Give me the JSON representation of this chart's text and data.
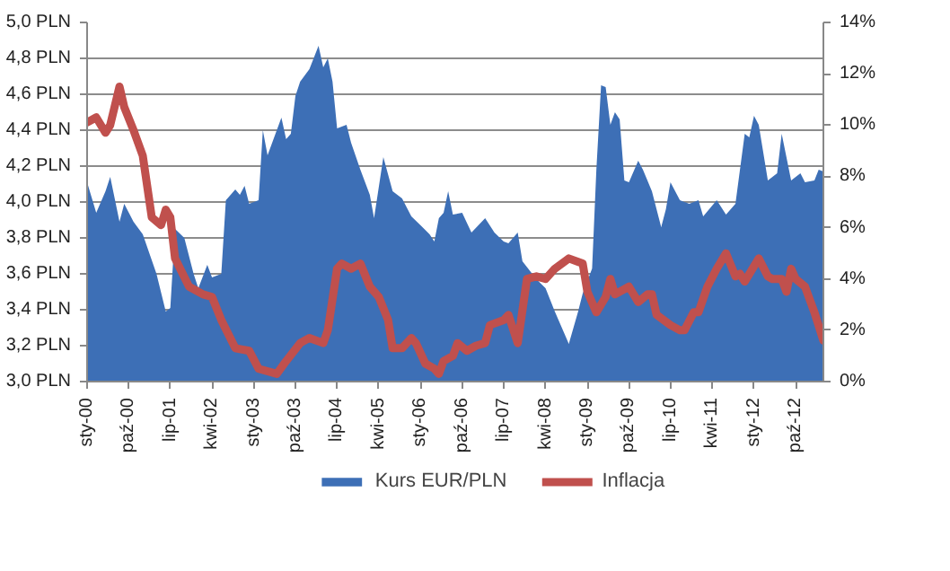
{
  "chart_data": {
    "type": "area",
    "xlim": [
      "2000-01",
      "2013-04"
    ],
    "xticks": [
      {
        "value": "2000-01",
        "label": "sty-00"
      },
      {
        "value": "2000-10",
        "label": "paź-00"
      },
      {
        "value": "2001-07",
        "label": "lip-01"
      },
      {
        "value": "2002-04",
        "label": "kwi-02"
      },
      {
        "value": "2003-01",
        "label": "sty-03"
      },
      {
        "value": "2003-10",
        "label": "paź-03"
      },
      {
        "value": "2004-07",
        "label": "lip-04"
      },
      {
        "value": "2005-04",
        "label": "kwi-05"
      },
      {
        "value": "2006-01",
        "label": "sty-06"
      },
      {
        "value": "2006-10",
        "label": "paź-06"
      },
      {
        "value": "2007-07",
        "label": "lip-07"
      },
      {
        "value": "2008-04",
        "label": "kwi-08"
      },
      {
        "value": "2009-01",
        "label": "sty-09"
      },
      {
        "value": "2009-10",
        "label": "paź-09"
      },
      {
        "value": "2010-07",
        "label": "lip-10"
      },
      {
        "value": "2011-04",
        "label": "kwi-11"
      },
      {
        "value": "2012-01",
        "label": "sty-12"
      },
      {
        "value": "2012-10",
        "label": "paź-12"
      }
    ],
    "ylim": [
      3.0,
      5.0
    ],
    "yticks": [
      {
        "value": 3.0,
        "label": "3,0 PLN"
      },
      {
        "value": 3.2,
        "label": "3,2 PLN"
      },
      {
        "value": 3.4,
        "label": "3,4 PLN"
      },
      {
        "value": 3.6,
        "label": "3,6 PLN"
      },
      {
        "value": 3.8,
        "label": "3,8 PLN"
      },
      {
        "value": 4.0,
        "label": "4,0 PLN"
      },
      {
        "value": 4.2,
        "label": "4,2 PLN"
      },
      {
        "value": 4.4,
        "label": "4,4 PLN"
      },
      {
        "value": 4.6,
        "label": "4,6 PLN"
      },
      {
        "value": 4.8,
        "label": "4,8 PLN"
      },
      {
        "value": 5.0,
        "label": "5,0 PLN"
      }
    ],
    "y2lim": [
      0,
      14
    ],
    "y2ticks": [
      {
        "value": 0,
        "label": "0%"
      },
      {
        "value": 2,
        "label": "2%"
      },
      {
        "value": 4,
        "label": "4%"
      },
      {
        "value": 6,
        "label": "6%"
      },
      {
        "value": 8,
        "label": "8%"
      },
      {
        "value": 10,
        "label": "10%"
      },
      {
        "value": 12,
        "label": "12%"
      },
      {
        "value": 14,
        "label": "14%"
      }
    ],
    "grid": "y",
    "legend": "bottom",
    "series": [
      {
        "name": "Kurs EUR/PLN",
        "color": "#3d6fb6",
        "x": [
          "2000-01",
          "2000-03",
          "2000-05",
          "2000-06",
          "2000-08",
          "2000-09",
          "2000-11",
          "2001-01",
          "2001-04",
          "2001-06",
          "2001-07",
          "2001-08",
          "2001-10",
          "2001-12",
          "2002-01",
          "2002-03",
          "2002-04",
          "2002-06",
          "2002-07",
          "2002-09",
          "2002-10",
          "2002-11",
          "2002-12",
          "2003-02",
          "2003-03",
          "2003-04",
          "2003-07",
          "2003-08",
          "2003-09",
          "2003-10",
          "2003-11",
          "2004-01",
          "2004-03",
          "2004-04",
          "2004-05",
          "2004-06",
          "2004-07",
          "2004-09",
          "2004-10",
          "2004-12",
          "2005-02",
          "2005-03",
          "2005-05",
          "2005-07",
          "2005-09",
          "2005-11",
          "2006-01",
          "2006-03",
          "2006-04",
          "2006-05",
          "2006-06",
          "2006-07",
          "2006-08",
          "2006-10",
          "2006-12",
          "2007-03",
          "2007-05",
          "2007-07",
          "2007-08",
          "2007-10",
          "2007-11",
          "2008-02",
          "2008-04",
          "2008-06",
          "2008-09",
          "2008-11",
          "2008-12",
          "2009-02",
          "2009-03",
          "2009-04",
          "2009-05",
          "2009-06",
          "2009-07",
          "2009-08",
          "2009-09",
          "2009-10",
          "2009-12",
          "2010-01",
          "2010-03",
          "2010-05",
          "2010-06",
          "2010-07",
          "2010-09",
          "2010-11",
          "2011-01",
          "2011-02",
          "2011-05",
          "2011-07",
          "2011-09",
          "2011-11",
          "2011-12",
          "2012-01",
          "2012-02",
          "2012-04",
          "2012-06",
          "2012-07",
          "2012-09",
          "2012-11",
          "2012-12",
          "2013-02",
          "2013-03",
          "2013-04"
        ],
        "values": [
          4.11,
          3.94,
          4.06,
          4.14,
          3.89,
          3.99,
          3.89,
          3.82,
          3.6,
          3.39,
          3.41,
          3.85,
          3.8,
          3.6,
          3.52,
          3.65,
          3.58,
          3.6,
          4.01,
          4.07,
          4.04,
          4.09,
          3.99,
          4.01,
          4.4,
          4.26,
          4.47,
          4.35,
          4.38,
          4.59,
          4.67,
          4.74,
          4.87,
          4.75,
          4.8,
          4.67,
          4.41,
          4.43,
          4.33,
          4.18,
          4.04,
          3.91,
          4.25,
          4.06,
          4.02,
          3.92,
          3.87,
          3.82,
          3.78,
          3.91,
          3.94,
          4.06,
          3.93,
          3.94,
          3.83,
          3.91,
          3.83,
          3.78,
          3.77,
          3.83,
          3.67,
          3.57,
          3.52,
          3.39,
          3.21,
          3.39,
          3.49,
          3.63,
          4.18,
          4.65,
          4.64,
          4.43,
          4.5,
          4.46,
          4.12,
          4.11,
          4.23,
          4.18,
          4.06,
          3.86,
          3.96,
          4.11,
          4.01,
          3.99,
          4.01,
          3.92,
          4.01,
          3.93,
          3.99,
          4.38,
          4.36,
          4.48,
          4.43,
          4.12,
          4.16,
          4.38,
          4.12,
          4.16,
          4.11,
          4.12,
          4.18,
          4.17
        ]
      },
      {
        "name": "Inflacja",
        "type": "line",
        "axis": "y2",
        "color": "#c0504d",
        "x": [
          "2000-01",
          "2000-03",
          "2000-05",
          "2000-06",
          "2000-08",
          "2000-09",
          "2000-11",
          "2001-01",
          "2001-03",
          "2001-05",
          "2001-06",
          "2001-07",
          "2001-08",
          "2001-11",
          "2002-02",
          "2002-04",
          "2002-06",
          "2002-09",
          "2002-12",
          "2003-02",
          "2003-06",
          "2003-08",
          "2003-11",
          "2004-01",
          "2004-04",
          "2004-05",
          "2004-07",
          "2004-08",
          "2004-10",
          "2004-12",
          "2005-02",
          "2005-04",
          "2005-06",
          "2005-07",
          "2005-09",
          "2005-11",
          "2005-12",
          "2006-02",
          "2006-04",
          "2006-05",
          "2006-06",
          "2006-08",
          "2006-09",
          "2006-11",
          "2007-01",
          "2007-03",
          "2007-04",
          "2007-07",
          "2007-08",
          "2007-10",
          "2007-12",
          "2008-02",
          "2008-04",
          "2008-06",
          "2008-09",
          "2008-12",
          "2009-01",
          "2009-03",
          "2009-05",
          "2009-06",
          "2009-07",
          "2009-10",
          "2009-12",
          "2010-02",
          "2010-03",
          "2010-04",
          "2010-07",
          "2010-09",
          "2010-10",
          "2010-12",
          "2011-01",
          "2011-03",
          "2011-05",
          "2011-07",
          "2011-09",
          "2011-10",
          "2011-11",
          "2012-02",
          "2012-04",
          "2012-05",
          "2012-07",
          "2012-08",
          "2012-09",
          "2012-10",
          "2012-12",
          "2013-02",
          "2013-04"
        ],
        "values": [
          10.1,
          10.3,
          9.7,
          10.0,
          11.5,
          10.7,
          9.8,
          8.8,
          6.4,
          6.1,
          6.7,
          6.4,
          4.8,
          3.7,
          3.4,
          3.3,
          2.4,
          1.3,
          1.2,
          0.5,
          0.3,
          0.8,
          1.5,
          1.7,
          1.5,
          2.0,
          4.4,
          4.6,
          4.4,
          4.6,
          3.7,
          3.3,
          2.4,
          1.3,
          1.3,
          1.7,
          1.5,
          0.7,
          0.5,
          0.3,
          0.8,
          1.0,
          1.5,
          1.2,
          1.4,
          1.5,
          2.2,
          2.4,
          2.6,
          1.5,
          4.0,
          4.1,
          4.0,
          4.4,
          4.8,
          4.6,
          3.5,
          2.7,
          3.3,
          4.0,
          3.4,
          3.7,
          3.1,
          3.4,
          3.4,
          2.6,
          2.2,
          2.0,
          2.0,
          2.7,
          2.7,
          3.7,
          4.4,
          5.0,
          4.1,
          4.2,
          3.9,
          4.8,
          4.1,
          4.0,
          4.0,
          3.5,
          4.4,
          4.0,
          3.7,
          2.7,
          1.6
        ]
      }
    ]
  }
}
